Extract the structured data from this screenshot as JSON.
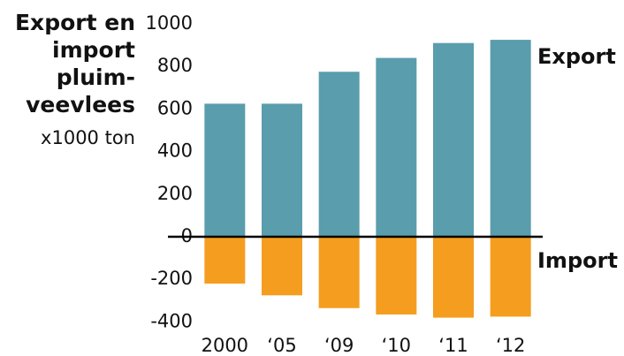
{
  "chart_data": {
    "type": "bar",
    "title_lines": [
      "Export en",
      "import",
      "pluim-",
      "veevlees"
    ],
    "subtitle": "x1000 ton",
    "categories": [
      "2000",
      "‘05",
      "‘09",
      "‘10",
      "‘11",
      "‘12"
    ],
    "series": [
      {
        "name": "Export",
        "color": "#5a9dad",
        "values": [
          625,
          625,
          775,
          840,
          910,
          925
        ]
      },
      {
        "name": "Import",
        "color": "#f59d1f",
        "values": [
          -220,
          -275,
          -335,
          -365,
          -380,
          -375
        ]
      }
    ],
    "ylim": [
      -450,
      1000
    ],
    "yticks": [
      -400,
      -200,
      0,
      200,
      400,
      600,
      800,
      1000
    ],
    "grid": false
  }
}
